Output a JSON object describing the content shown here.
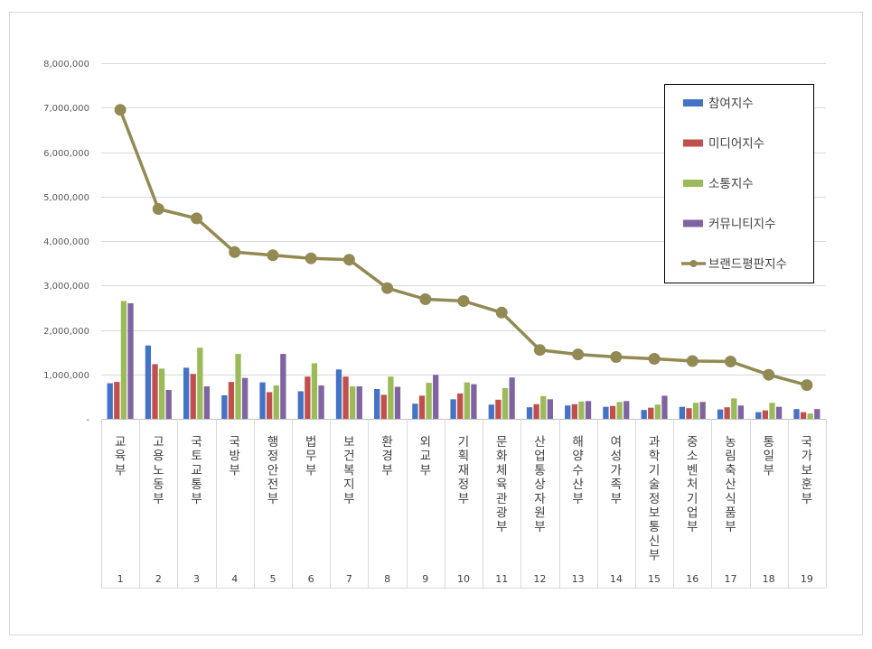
{
  "chart_data": {
    "type": "bar",
    "combo_line_series": "브랜드평판지수",
    "title": "",
    "xlabel": "",
    "ylabel": "",
    "ylim": [
      0,
      8000000
    ],
    "yticks": [
      0,
      1000000,
      2000000,
      3000000,
      4000000,
      5000000,
      6000000,
      7000000,
      8000000
    ],
    "ytick_labels": [
      "-",
      "1,000,000",
      "2,000,000",
      "3,000,000",
      "4,000,000",
      "5,000,000",
      "6,000,000",
      "7,000,000",
      "8,000,000"
    ],
    "grid": true,
    "legend_position": "top-right",
    "categories": [
      "교육부",
      "고용노동부",
      "국토교통부",
      "국방부",
      "행정안전부",
      "법무부",
      "보건복지부",
      "환경부",
      "외교부",
      "기획재정부",
      "문화체육관광부",
      "산업통상자원부",
      "해양수산부",
      "여성가족부",
      "과학기술정보통신부",
      "중소벤처기업부",
      "농림축산식품부",
      "통일부",
      "국가보훈부"
    ],
    "ranks": [
      "1",
      "2",
      "3",
      "4",
      "5",
      "6",
      "7",
      "8",
      "9",
      "10",
      "11",
      "12",
      "13",
      "14",
      "15",
      "16",
      "17",
      "18",
      "19"
    ],
    "series": [
      {
        "name": "참여지수",
        "type": "bar",
        "color": "#4472C4",
        "values": [
          800000,
          1650000,
          1150000,
          530000,
          820000,
          620000,
          1110000,
          670000,
          340000,
          440000,
          320000,
          260000,
          300000,
          270000,
          200000,
          270000,
          210000,
          150000,
          220000
        ]
      },
      {
        "name": "미디어지수",
        "type": "bar",
        "color": "#C0504D",
        "values": [
          830000,
          1230000,
          1010000,
          830000,
          600000,
          950000,
          950000,
          540000,
          520000,
          570000,
          430000,
          330000,
          330000,
          290000,
          250000,
          240000,
          260000,
          190000,
          150000
        ]
      },
      {
        "name": "소통지수",
        "type": "bar",
        "color": "#9BBB59",
        "values": [
          2650000,
          1130000,
          1600000,
          1460000,
          750000,
          1250000,
          730000,
          950000,
          810000,
          820000,
          690000,
          510000,
          390000,
          380000,
          320000,
          360000,
          460000,
          360000,
          120000
        ]
      },
      {
        "name": "커뮤니티지수",
        "type": "bar",
        "color": "#8064A2",
        "values": [
          2600000,
          650000,
          730000,
          920000,
          1460000,
          750000,
          730000,
          720000,
          990000,
          780000,
          930000,
          440000,
          400000,
          400000,
          520000,
          380000,
          300000,
          270000,
          220000
        ]
      },
      {
        "name": "브랜드평판지수",
        "type": "line",
        "color": "#938953",
        "values": [
          6950000,
          4720000,
          4510000,
          3750000,
          3680000,
          3610000,
          3580000,
          2940000,
          2690000,
          2650000,
          2390000,
          1550000,
          1450000,
          1390000,
          1350000,
          1300000,
          1290000,
          990000,
          760000
        ]
      }
    ]
  }
}
